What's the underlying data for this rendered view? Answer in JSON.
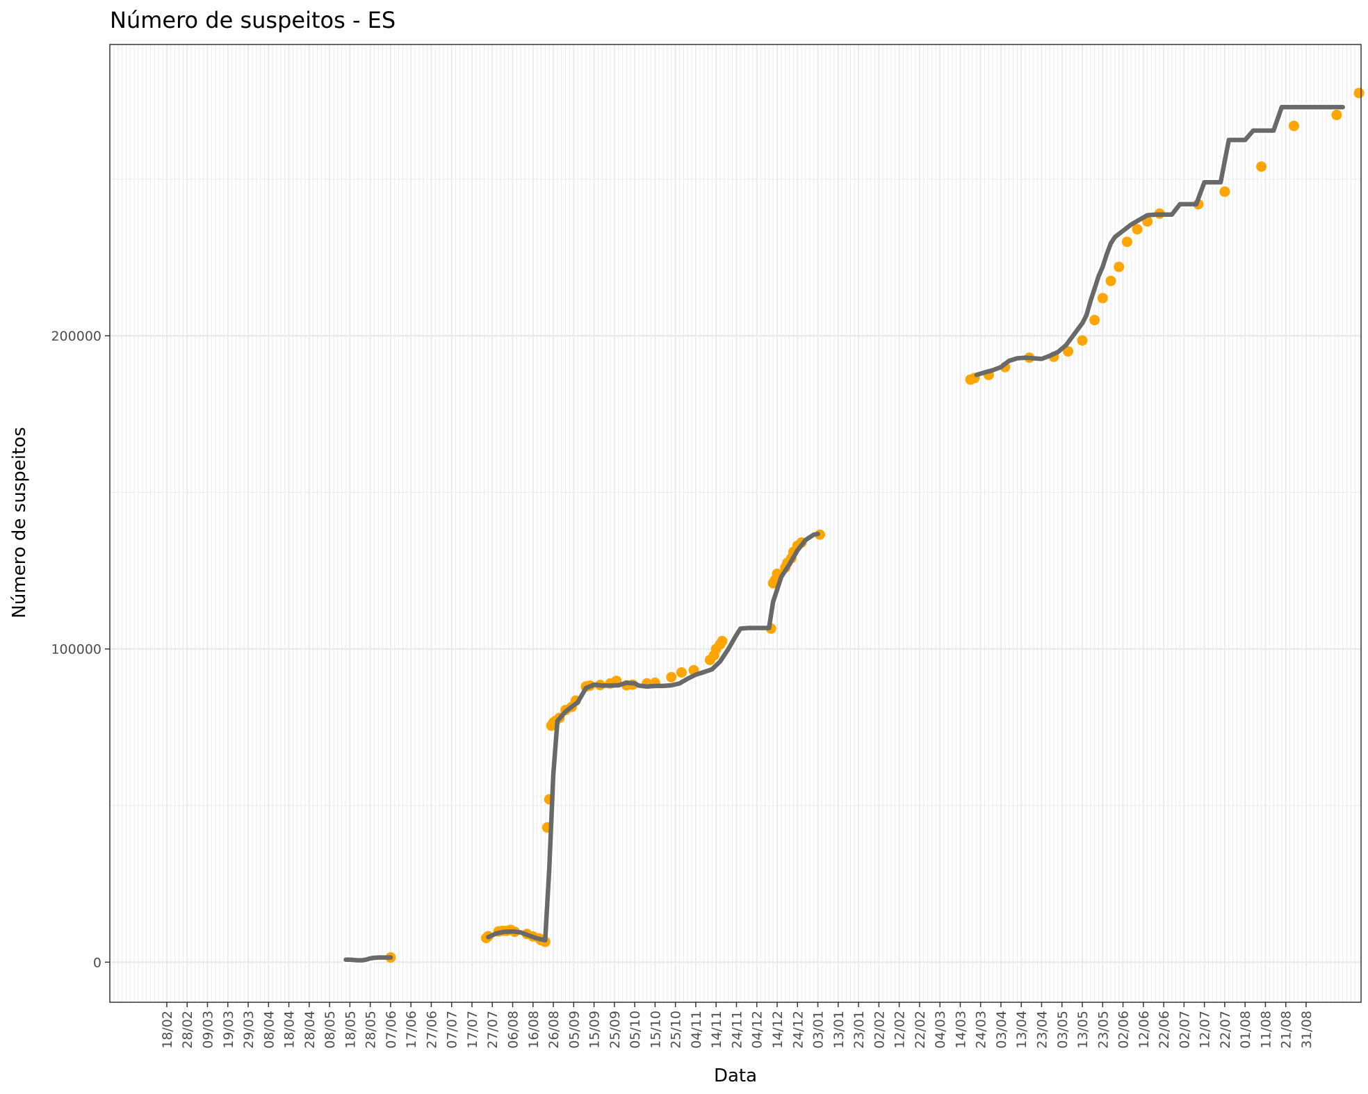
{
  "chart_data": {
    "type": "line",
    "title": "Número de suspeitos - ES",
    "xlabel": "Data",
    "ylabel": "Número de suspeitos",
    "x_tick_labels": [
      "18/02",
      "28/02",
      "09/03",
      "19/03",
      "29/03",
      "08/04",
      "18/04",
      "28/04",
      "08/05",
      "18/05",
      "28/05",
      "07/06",
      "17/06",
      "27/06",
      "07/07",
      "17/07",
      "27/07",
      "06/08",
      "16/08",
      "26/08",
      "05/09",
      "15/09",
      "25/09",
      "05/10",
      "15/10",
      "25/10",
      "04/11",
      "14/11",
      "24/11",
      "04/12",
      "14/12",
      "24/12",
      "03/01",
      "13/01",
      "23/01",
      "02/02",
      "12/02",
      "22/02",
      "04/03",
      "14/03",
      "24/03",
      "03/04",
      "13/04",
      "23/04",
      "03/05",
      "13/05",
      "23/05",
      "02/06",
      "12/06",
      "22/06",
      "02/07",
      "12/07",
      "22/07",
      "01/08",
      "11/08",
      "21/08",
      "31/08"
    ],
    "y_tick_labels": [
      "0",
      "100000",
      "200000"
    ],
    "y_ticks": [
      0,
      100000,
      200000
    ],
    "ylim": [
      -12800,
      293000
    ],
    "grid": true,
    "colors": {
      "line": "#696969",
      "points": "#FFA500",
      "grid": "#EBEBEB",
      "panel_border": "#333333"
    },
    "series": [
      {
        "x": [
          0,
          2,
          4,
          6,
          8,
          10,
          11
        ],
        "values": [
          800,
          900,
          500,
          1000,
          1300,
          1400,
          1500
        ]
      },
      {
        "x": [
          -1,
          1,
          3,
          5,
          7,
          9,
          11,
          13,
          15,
          16,
          16.5,
          17,
          17.5,
          18,
          20,
          22,
          24,
          26,
          28,
          29,
          30,
          32,
          34,
          36,
          38,
          40,
          42,
          44,
          46,
          48,
          50,
          52,
          54,
          56,
          58,
          60,
          62,
          64,
          66,
          68,
          70,
          72,
          74,
          76,
          78,
          80,
          82,
          84,
          86,
          88,
          90,
          92,
          94,
          96,
          98,
          100,
          102,
          104,
          106,
          108,
          110,
          112,
          114,
          116,
          118,
          120,
          122,
          124,
          126,
          128
        ],
        "values": [
          7800,
          8000,
          9000,
          9800,
          10000,
          10000,
          9500,
          8500,
          7500,
          6500,
          12000,
          30000,
          48000,
          60000,
          76000,
          79000,
          81000,
          82000,
          85000,
          87000,
          88000,
          88500,
          88000,
          88000,
          88000,
          88200,
          88600,
          88800,
          88200,
          88000,
          88400,
          88500,
          88600,
          89000,
          90000,
          91000,
          91800,
          92300,
          93500,
          96000,
          100000,
          104000,
          106500,
          106500,
          106500,
          106500,
          106500,
          106500,
          115000,
          122000,
          125000,
          128000,
          131500,
          134500,
          136000,
          136500,
          136500,
          136500,
          136500,
          136500,
          136500,
          136500,
          136500,
          136500,
          136500,
          136500,
          136500,
          136500,
          136500,
          136500
        ]
      }
    ],
    "main_line": {
      "x": [
        -24,
        -20,
        -16,
        -12,
        -8,
        -4,
        0,
        4,
        6,
        11,
        15,
        17,
        18,
        19,
        21,
        23,
        25,
        27,
        29,
        31,
        33,
        36,
        40,
        44,
        48,
        52,
        56,
        60,
        64,
        68,
        70,
        73,
        75,
        77,
        80,
        84,
        88,
        92,
        94,
        97,
        100,
        103,
        106,
        108,
        112
      ],
      "values": [
        800,
        650,
        500,
        1000,
        1300,
        1400,
        1500,
        1500,
        1500,
        1500,
        7800,
        9400,
        9800,
        9500,
        8500,
        7500,
        6500,
        32000,
        60000,
        76000,
        80000,
        85000,
        88000,
        88000,
        89000,
        88000,
        88000,
        89000,
        91000,
        92600,
        95000,
        100000,
        106000,
        106500,
        106500,
        106500,
        122000,
        128000,
        134000,
        136500,
        136500,
        136500,
        136500,
        136500,
        136500
      ]
    },
    "line_points": [
      [
        42,
        800
      ],
      [
        46,
        900
      ],
      [
        50,
        500
      ],
      [
        54,
        1000
      ],
      [
        58,
        1300
      ],
      [
        63,
        1400
      ],
      [
        67,
        1500
      ],
      [
        120,
        7800
      ],
      [
        124,
        9000
      ],
      [
        128,
        9800
      ],
      [
        132,
        10000
      ],
      [
        136,
        10000
      ],
      [
        140,
        9500
      ],
      [
        144,
        8500
      ],
      [
        148,
        7500
      ],
      [
        152,
        6500
      ],
      [
        155,
        30000
      ],
      [
        158,
        60000
      ],
      [
        161,
        76000
      ],
      [
        164,
        79000
      ],
      [
        167,
        81000
      ],
      [
        170,
        82000
      ],
      [
        173,
        85000
      ],
      [
        176,
        87500
      ],
      [
        179,
        88300
      ],
      [
        183,
        88000
      ],
      [
        188,
        88000
      ],
      [
        194,
        88300
      ],
      [
        199,
        88900
      ],
      [
        203,
        88200
      ],
      [
        208,
        88000
      ],
      [
        214,
        88400
      ],
      [
        220,
        88500
      ],
      [
        226,
        89000
      ],
      [
        232,
        90500
      ],
      [
        238,
        91800
      ],
      [
        244,
        92800
      ],
      [
        249,
        95000
      ],
      [
        252,
        98000
      ],
      [
        255,
        102000
      ],
      [
        258,
        105500
      ],
      [
        261,
        106500
      ],
      [
        266,
        106500
      ],
      [
        272,
        106500
      ],
      [
        276,
        106500
      ],
      [
        279,
        114000
      ],
      [
        282,
        122000
      ],
      [
        285,
        125500
      ],
      [
        288,
        129000
      ],
      [
        291,
        132500
      ],
      [
        294,
        135000
      ],
      [
        297,
        136300
      ],
      [
        300,
        136500
      ],
      [
        338,
        187000
      ],
      [
        345,
        188500
      ],
      [
        352,
        190000
      ],
      [
        359,
        193000
      ],
      [
        365,
        193300
      ],
      [
        372,
        193000
      ],
      [
        378,
        194000
      ],
      [
        384,
        195500
      ],
      [
        390,
        198500
      ],
      [
        396,
        202500
      ],
      [
        400,
        206000
      ],
      [
        404,
        212000
      ],
      [
        408,
        218000
      ],
      [
        412,
        223000
      ],
      [
        416,
        229000
      ],
      [
        420,
        231500
      ],
      [
        424,
        233500
      ],
      [
        428,
        235500
      ],
      [
        432,
        237000
      ],
      [
        436,
        238500
      ],
      [
        440,
        238500
      ],
      [
        444,
        238500
      ],
      [
        448,
        240000
      ],
      [
        452,
        240000
      ],
      [
        456,
        240000
      ],
      [
        460,
        244000
      ],
      [
        464,
        246000
      ],
      [
        468,
        246000
      ],
      [
        472,
        246000
      ],
      [
        476,
        256000
      ],
      [
        480,
        256000
      ],
      [
        484,
        256000
      ],
      [
        488,
        259000
      ],
      [
        492,
        259000
      ],
      [
        496,
        259000
      ],
      [
        500,
        264000
      ],
      [
        504,
        264000
      ],
      [
        508,
        264000
      ],
      [
        512,
        264000
      ],
      [
        516,
        264000
      ],
      [
        520,
        264000
      ],
      [
        524,
        264000
      ],
      [
        528,
        264000
      ]
    ],
    "points": [
      [
        67,
        1500
      ],
      [
        120,
        7800
      ],
      [
        128,
        9800
      ],
      [
        136,
        9900
      ],
      [
        152,
        6500
      ],
      [
        156,
        49000
      ],
      [
        160,
        75500
      ],
      [
        166,
        78000
      ],
      [
        172,
        81000
      ],
      [
        190,
        87700
      ],
      [
        205,
        90300
      ],
      [
        250,
        99500
      ],
      [
        253,
        101500
      ],
      [
        274,
        106500
      ],
      [
        279,
        121000
      ],
      [
        281,
        123000
      ],
      [
        286,
        127000
      ],
      [
        288,
        129000
      ],
      [
        290,
        132000
      ],
      [
        300,
        136500
      ],
      [
        336,
        186000
      ],
      [
        342,
        187500
      ],
      [
        350,
        190000
      ],
      [
        362,
        193000
      ],
      [
        372,
        192800
      ],
      [
        380,
        195000
      ],
      [
        386,
        198500
      ],
      [
        392,
        204000
      ],
      [
        396,
        212000
      ],
      [
        400,
        218000
      ],
      [
        404,
        222000
      ],
      [
        409,
        230000
      ],
      [
        414,
        234000
      ],
      [
        420,
        236000
      ],
      [
        426,
        239000
      ],
      [
        442,
        242000
      ],
      [
        452,
        246000
      ],
      [
        466,
        254000
      ],
      [
        484,
        266500
      ],
      [
        500,
        270000
      ],
      [
        528,
        277500
      ]
    ],
    "x_range": [
      -15,
      561
    ],
    "x_tick_positions": [
      9,
      19,
      29,
      39,
      49,
      59,
      69,
      79,
      89,
      99,
      109,
      119,
      129,
      139,
      149,
      159,
      169,
      179,
      189,
      199,
      209,
      219,
      229,
      239,
      249,
      259,
      269,
      279,
      289,
      299,
      309,
      319,
      329,
      339,
      349,
      359,
      369,
      379,
      389,
      399,
      409,
      419,
      429,
      439,
      449,
      459,
      469,
      479,
      489,
      499,
      509,
      519,
      529,
      539,
      549,
      559,
      569
    ]
  }
}
